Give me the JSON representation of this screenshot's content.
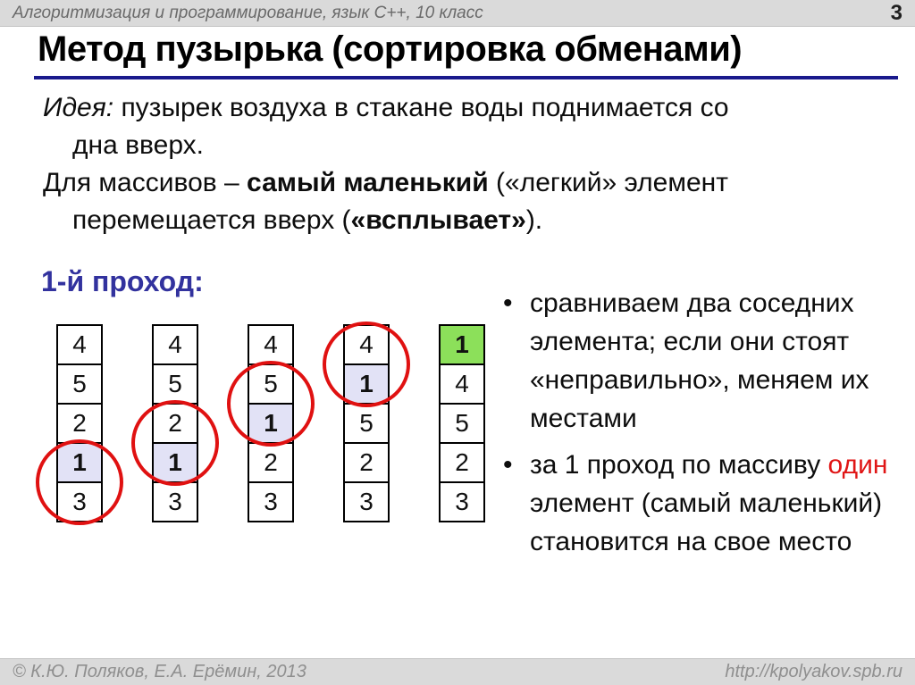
{
  "header": {
    "course_label": "Алгоритмизация и программирование, язык  C++, 10 класс",
    "page_number": "3"
  },
  "title": "Метод пузырька (сортировка обменами)",
  "intro": {
    "idea_label": "Идея:",
    "line1_rest": "пузырек воздуха в стакане воды поднимается со",
    "line2": "дна вверх.",
    "line3_pre": "Для массивов – ",
    "line3_bold": "самый маленький",
    "line3_post": "(«легкий» элемент",
    "line4_pre": "перемещается вверх (",
    "line4_bold": "«всплывает»",
    "line4_post": ")."
  },
  "pass_heading": "1-й проход:",
  "passes": [
    {
      "cells": [
        "4",
        "5",
        "2",
        "1",
        "3"
      ],
      "highlight": 3,
      "highlight_color": "lavender",
      "circle": 3
    },
    {
      "cells": [
        "4",
        "5",
        "2",
        "1",
        "3"
      ],
      "highlight": 3,
      "highlight_color": "lavender",
      "circle": 2
    },
    {
      "cells": [
        "4",
        "5",
        "1",
        "2",
        "3"
      ],
      "highlight": 2,
      "highlight_color": "lavender",
      "circle": 1
    },
    {
      "cells": [
        "4",
        "1",
        "5",
        "2",
        "3"
      ],
      "highlight": 1,
      "highlight_color": "lavender",
      "circle": 0
    },
    {
      "cells": [
        "1",
        "4",
        "5",
        "2",
        "3"
      ],
      "highlight": 0,
      "highlight_color": "green",
      "circle": null
    }
  ],
  "bullets": [
    {
      "marker": "•",
      "segments": [
        {
          "text": "сравниваем два соседних элемента; если они стоят «неправильно», меняем их местами"
        }
      ]
    },
    {
      "marker": "•",
      "segments": [
        {
          "text": "за 1 проход по массиву "
        },
        {
          "text": "один",
          "color": "red"
        },
        {
          "text": " элемент (самый маленький) становится на свое место"
        }
      ]
    }
  ],
  "footer": {
    "copyright": "© К.Ю. Поляков, Е.А. Ерёмин, 2013",
    "url": "http://kpolyakov.spb.ru"
  },
  "colors": {
    "navy": "#1a1a8c",
    "heading_blue": "#32329e",
    "lavender": "#e2e2f6",
    "green": "#8ce05a",
    "circle_red": "#e01111",
    "red_text": "#e01515",
    "bar_gray": "#dadada",
    "bar_text": "#6a6a6a",
    "footer_text": "#8f8f8f"
  }
}
